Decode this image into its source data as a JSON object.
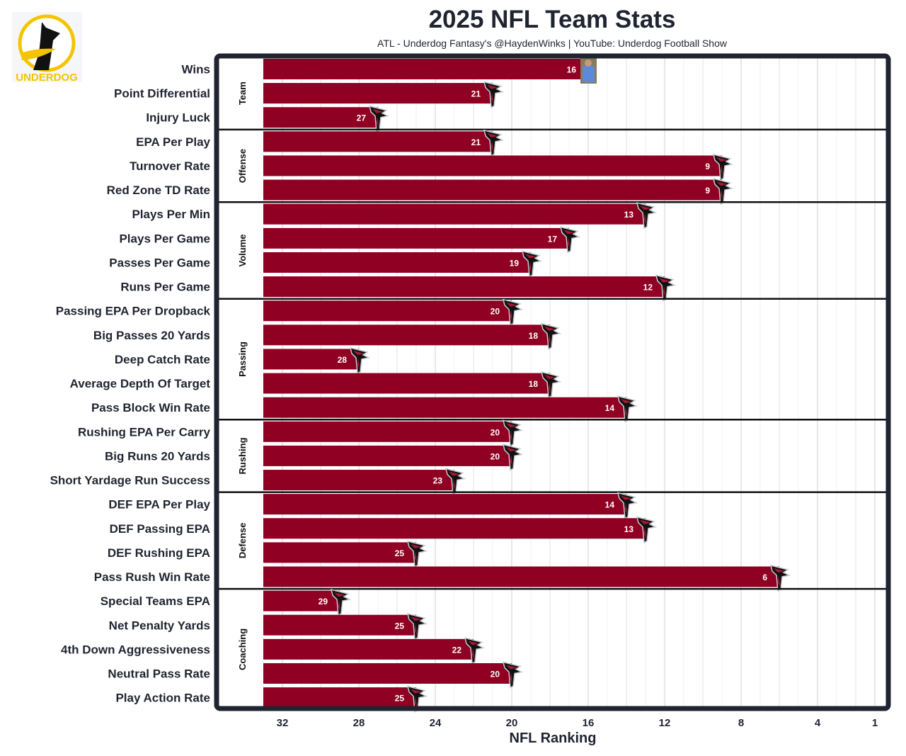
{
  "title": "2025 NFL Team Stats",
  "subtitle": "ATL - Underdog Fantasy's @HaydenWinks | YouTube: Underdog Football Show",
  "logo": {
    "text": "UNDERDOG",
    "color": "#f5c400"
  },
  "chart_data": {
    "type": "bar",
    "orientation": "horizontal",
    "xlabel": "NFL Ranking",
    "x_ticks": [
      32,
      28,
      24,
      20,
      16,
      12,
      8,
      4,
      1
    ],
    "xlim": [
      33,
      1
    ],
    "x_reversed": true,
    "grid": true,
    "bar_color": "#8f0022",
    "groups": [
      {
        "name": "Team",
        "categories": [
          "Wins",
          "Point Differential",
          "Injury Luck"
        ],
        "values": [
          16,
          21,
          27
        ]
      },
      {
        "name": "Offense",
        "categories": [
          "EPA Per Play",
          "Turnover Rate",
          "Red Zone TD Rate"
        ],
        "values": [
          21,
          9,
          9
        ]
      },
      {
        "name": "Volume",
        "categories": [
          "Plays Per Min",
          "Plays Per Game",
          "Passes Per Game",
          "Runs Per Game"
        ],
        "values": [
          13,
          17,
          19,
          12
        ]
      },
      {
        "name": "Passing",
        "categories": [
          "Passing EPA Per Dropback",
          "Big Passes 20 Yards",
          "Deep Catch Rate",
          "Average Depth Of Target",
          "Pass Block Win Rate"
        ],
        "values": [
          20,
          18,
          28,
          18,
          14
        ]
      },
      {
        "name": "Rushing",
        "categories": [
          "Rushing EPA Per Carry",
          "Big Runs 20 Yards",
          "Short Yardage Run Success"
        ],
        "values": [
          20,
          20,
          23
        ]
      },
      {
        "name": "Defense",
        "categories": [
          "DEF EPA Per Play",
          "DEF Passing EPA",
          "DEF Rushing EPA",
          "Pass Rush Win Rate"
        ],
        "values": [
          14,
          13,
          25,
          6
        ]
      },
      {
        "name": "Coaching",
        "categories": [
          "Special Teams EPA",
          "Net Penalty Yards",
          "4th Down Aggressiveness",
          "Neutral Pass Rate",
          "Play Action Rate"
        ],
        "values": [
          29,
          25,
          22,
          20,
          25
        ]
      }
    ]
  }
}
